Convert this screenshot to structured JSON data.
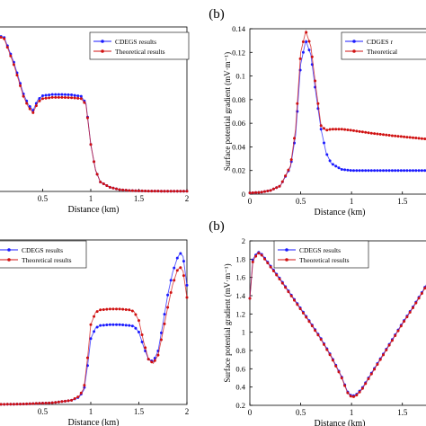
{
  "chart_data": [
    {
      "type": "line",
      "panel_label": "",
      "xlabel": "Distance (km)",
      "ylabel": "",
      "xlim": [
        0,
        2
      ],
      "ylim": [
        0,
        0.14
      ],
      "xticks": [
        "0.5",
        "1",
        "1.5",
        "2"
      ],
      "yticks": [],
      "legend": {
        "position": "top-right"
      },
      "series": [
        {
          "name": "CDEGS results",
          "color": "#1a1aff",
          "x": [
            0,
            0.1,
            0.2,
            0.3,
            0.35,
            0.4,
            0.45,
            0.5,
            0.6,
            0.7,
            0.8,
            0.9,
            0.95,
            1.0,
            1.05,
            1.1,
            1.2,
            1.3,
            1.4,
            1.5,
            1.6,
            1.8,
            2.0
          ],
          "y": [
            0.1335,
            0.131,
            0.11,
            0.083,
            0.074,
            0.069,
            0.078,
            0.0815,
            0.0825,
            0.0825,
            0.0822,
            0.081,
            0.075,
            0.04,
            0.018,
            0.008,
            0.0035,
            0.0015,
            0.0008,
            0.0005,
            0.0003,
            0.0002,
            0.0002
          ]
        },
        {
          "name": "Theoretical results",
          "color": "#d01010",
          "x": [
            0,
            0.1,
            0.2,
            0.3,
            0.35,
            0.4,
            0.45,
            0.5,
            0.6,
            0.7,
            0.8,
            0.9,
            0.95,
            1.0,
            1.05,
            1.1,
            1.2,
            1.3,
            1.4,
            1.5,
            1.6,
            1.8,
            2.0
          ],
          "y": [
            0.1335,
            0.13,
            0.108,
            0.081,
            0.072,
            0.067,
            0.076,
            0.079,
            0.08,
            0.08,
            0.0798,
            0.079,
            0.074,
            0.04,
            0.018,
            0.008,
            0.0035,
            0.0015,
            0.0008,
            0.0005,
            0.0003,
            0.0002,
            0.0002
          ]
        }
      ]
    },
    {
      "type": "line",
      "panel_label": "(b)",
      "xlabel": "Distance (km)",
      "ylabel": "Surface potential gradient (mV·m⁻¹)",
      "xlim": [
        0,
        1.75
      ],
      "ylim": [
        0,
        0.14
      ],
      "xticks": [
        "0",
        "0.5",
        "1",
        "1.5"
      ],
      "yticks": [
        "0",
        "0.02",
        "0.04",
        "0.06",
        "0.08",
        "0.1",
        "0.12",
        "0.14"
      ],
      "legend": {
        "position": "top-right"
      },
      "series": [
        {
          "name": "CDGES r",
          "color": "#1a1aff",
          "x": [
            0,
            0.1,
            0.2,
            0.3,
            0.4,
            0.45,
            0.5,
            0.55,
            0.6,
            0.65,
            0.7,
            0.75,
            0.8,
            0.9,
            1.0,
            1.2,
            1.4,
            1.6,
            1.75
          ],
          "y": [
            0.001,
            0.0015,
            0.003,
            0.007,
            0.023,
            0.05,
            0.11,
            0.13,
            0.118,
            0.085,
            0.055,
            0.035,
            0.026,
            0.021,
            0.02,
            0.02,
            0.02,
            0.02,
            0.02
          ]
        },
        {
          "name": "Theoretical",
          "color": "#d01010",
          "x": [
            0,
            0.1,
            0.2,
            0.3,
            0.4,
            0.45,
            0.5,
            0.55,
            0.6,
            0.65,
            0.7,
            0.75,
            0.8,
            0.9,
            1.0,
            1.2,
            1.4,
            1.6,
            1.75
          ],
          "y": [
            0.001,
            0.0015,
            0.003,
            0.007,
            0.024,
            0.055,
            0.12,
            0.138,
            0.125,
            0.09,
            0.058,
            0.054,
            0.055,
            0.055,
            0.054,
            0.0515,
            0.0495,
            0.0478,
            0.0465
          ]
        }
      ]
    },
    {
      "type": "line",
      "panel_label": "",
      "xlabel": "Distance (km)",
      "ylabel": "",
      "xlim": [
        0,
        2
      ],
      "ylim": [
        0,
        2
      ],
      "xticks": [
        "0.5",
        "1",
        "1.5",
        "2"
      ],
      "yticks": [],
      "legend": {
        "position": "top-left"
      },
      "series": [
        {
          "name": "CDEGS results",
          "color": "#1a1aff",
          "x": [
            0,
            0.3,
            0.6,
            0.8,
            0.88,
            0.93,
            0.97,
            1.0,
            1.05,
            1.1,
            1.2,
            1.3,
            1.4,
            1.45,
            1.5,
            1.55,
            1.6,
            1.65,
            1.7,
            1.75,
            1.8,
            1.85,
            1.9,
            1.93,
            1.96,
            2.0
          ],
          "y": [
            0.0,
            0.005,
            0.02,
            0.05,
            0.09,
            0.18,
            0.5,
            0.8,
            0.93,
            0.96,
            0.97,
            0.97,
            0.96,
            0.95,
            0.88,
            0.7,
            0.55,
            0.52,
            0.65,
            0.98,
            1.33,
            1.6,
            1.78,
            1.84,
            1.8,
            1.45
          ]
        },
        {
          "name": "Theoretical results",
          "color": "#d01010",
          "x": [
            0,
            0.3,
            0.6,
            0.8,
            0.88,
            0.93,
            0.97,
            1.0,
            1.05,
            1.1,
            1.2,
            1.3,
            1.4,
            1.45,
            1.5,
            1.55,
            1.6,
            1.65,
            1.7,
            1.75,
            1.8,
            1.85,
            1.9,
            1.93,
            1.96,
            2.0
          ],
          "y": [
            0.0,
            0.005,
            0.02,
            0.05,
            0.1,
            0.2,
            0.6,
            0.97,
            1.12,
            1.15,
            1.16,
            1.16,
            1.15,
            1.13,
            1.02,
            0.76,
            0.55,
            0.5,
            0.6,
            0.88,
            1.18,
            1.45,
            1.63,
            1.67,
            1.62,
            1.3
          ]
        }
      ]
    },
    {
      "type": "line",
      "panel_label": "(b)",
      "xlabel": "Distance (km)",
      "ylabel": "Surface potential gradient (mV·m⁻¹)",
      "xlim": [
        0,
        1.75
      ],
      "ylim": [
        0.2,
        2
      ],
      "xticks": [
        "0",
        "0.5",
        "1",
        "1.5"
      ],
      "yticks": [
        "0.2",
        "0.4",
        "0.6",
        "0.8",
        "1",
        "1.2",
        "1.4",
        "1.6",
        "1.8",
        "2"
      ],
      "legend": {
        "position": "top-left"
      },
      "series": [
        {
          "name": "CDEGS results",
          "color": "#1a1aff",
          "x": [
            0,
            0.03,
            0.08,
            0.12,
            0.2,
            0.3,
            0.4,
            0.5,
            0.6,
            0.7,
            0.8,
            0.9,
            0.96,
            1.0,
            1.04,
            1.1,
            1.2,
            1.3,
            1.4,
            1.5,
            1.6,
            1.7,
            1.75
          ],
          "y": [
            1.37,
            1.8,
            1.88,
            1.85,
            1.73,
            1.58,
            1.42,
            1.26,
            1.1,
            0.93,
            0.74,
            0.52,
            0.35,
            0.3,
            0.31,
            0.38,
            0.56,
            0.74,
            0.92,
            1.1,
            1.27,
            1.45,
            1.55
          ]
        },
        {
          "name": "Theoretical results",
          "color": "#d01010",
          "x": [
            0,
            0.03,
            0.08,
            0.12,
            0.2,
            0.3,
            0.4,
            0.5,
            0.6,
            0.7,
            0.8,
            0.9,
            0.96,
            1.0,
            1.04,
            1.1,
            1.2,
            1.3,
            1.4,
            1.5,
            1.6,
            1.7,
            1.75
          ],
          "y": [
            1.37,
            1.78,
            1.87,
            1.84,
            1.72,
            1.57,
            1.41,
            1.25,
            1.09,
            0.92,
            0.73,
            0.51,
            0.34,
            0.29,
            0.3,
            0.37,
            0.55,
            0.73,
            0.91,
            1.09,
            1.26,
            1.44,
            1.54
          ]
        }
      ]
    }
  ]
}
